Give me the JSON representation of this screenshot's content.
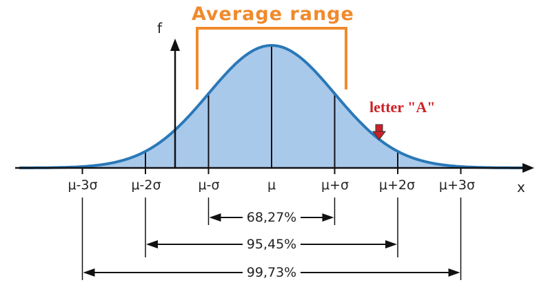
{
  "diagram": {
    "f_label": "f",
    "x_label": "x",
    "title": "Average range",
    "ticks": [
      "μ-3σ",
      "μ-2σ",
      "μ-σ",
      "μ",
      "μ+σ",
      "μ+2σ",
      "μ+3σ"
    ],
    "ranges": [
      {
        "label": "68,27%",
        "from": -1,
        "to": 1
      },
      {
        "label": "95,45%",
        "from": -2,
        "to": 2
      },
      {
        "label": "99,73%",
        "from": -3,
        "to": 3
      }
    ],
    "annotation": "letter \"A\"",
    "colors": {
      "curve": "#2a78b8",
      "fill": "#a9c9ea",
      "title": "#f08a2c",
      "bracket": "#f08a2c",
      "annotation": "#cc2026",
      "pointer": "#cc2026"
    }
  }
}
